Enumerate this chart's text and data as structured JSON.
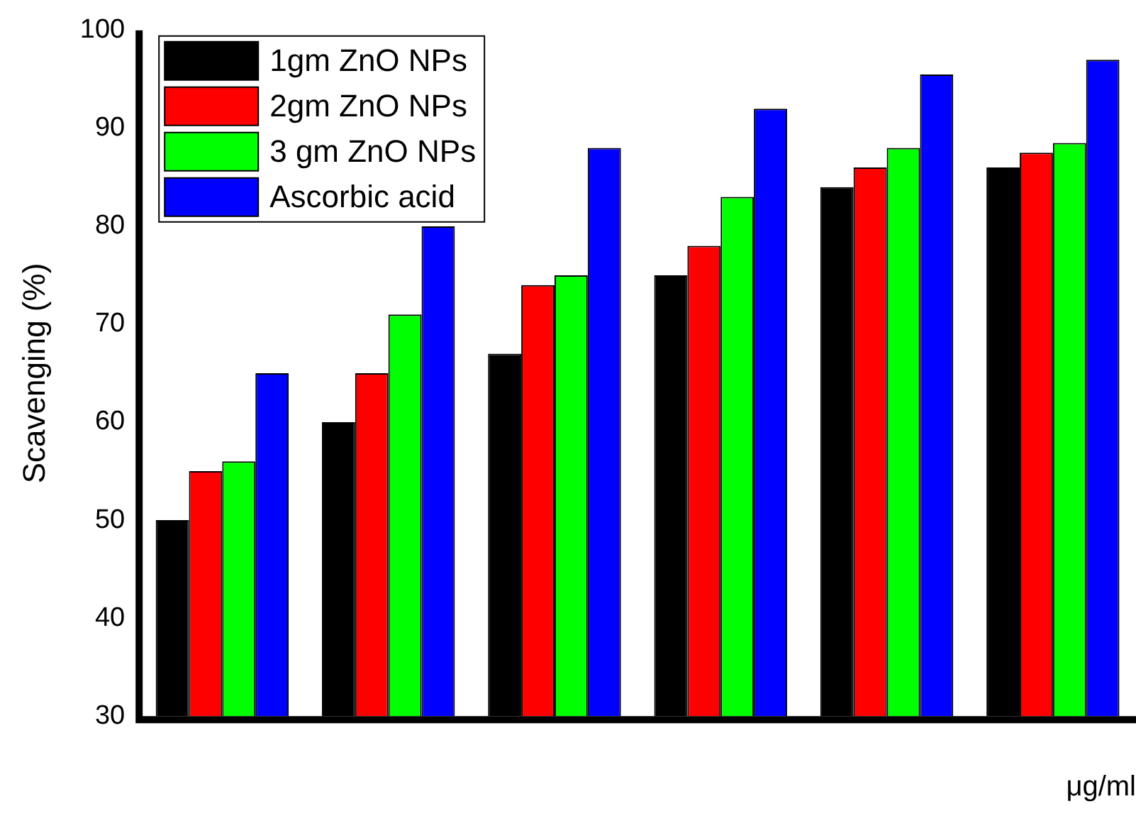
{
  "chart_data": {
    "type": "bar",
    "ylabel": "Scavenging (%)",
    "xlabel": "μg/ml",
    "categories": [
      null,
      null,
      null,
      null,
      null,
      null
    ],
    "series": [
      {
        "name": "1gm ZnO NPs",
        "color": "#000000",
        "values": [
          50,
          60,
          67,
          75,
          84,
          86
        ]
      },
      {
        "name": "2gm ZnO NPs",
        "color": "#ff0000",
        "values": [
          55,
          65,
          74,
          78,
          86,
          87.5
        ]
      },
      {
        "name": "3 gm ZnO NPs",
        "color": "#00ff00",
        "values": [
          56,
          71,
          75,
          83,
          88,
          88.5
        ]
      },
      {
        "name": "Ascorbic acid",
        "color": "#0000ff",
        "values": [
          65,
          80,
          88,
          92,
          95.5,
          97
        ]
      }
    ],
    "ylim": [
      30,
      100
    ],
    "yticks": [
      30,
      40,
      50,
      60,
      70,
      80,
      90,
      100
    ],
    "grid": false,
    "legend": "top left"
  }
}
